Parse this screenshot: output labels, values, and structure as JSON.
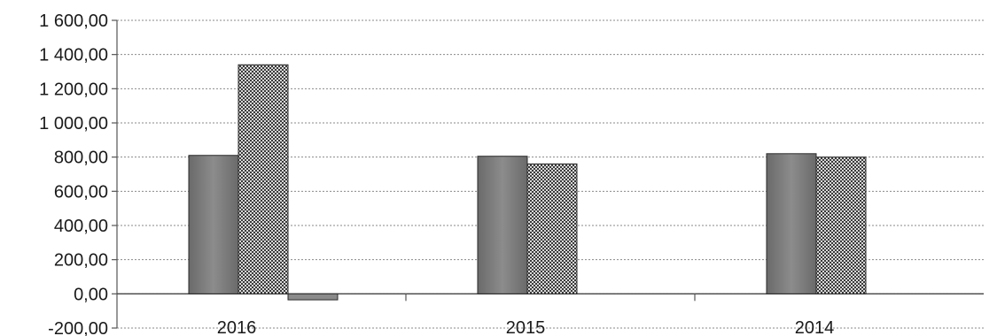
{
  "chart_data": {
    "type": "bar",
    "categories": [
      "2016",
      "2015",
      "2014"
    ],
    "series": [
      {
        "values": [
          810,
          805,
          820
        ],
        "color": "#7a7a7a",
        "pattern": "solid"
      },
      {
        "values": [
          1340,
          760,
          800
        ],
        "color": "#9a9a9a",
        "pattern": "checker"
      },
      {
        "values": [
          -35,
          0,
          0
        ],
        "color": "#8a8a8a",
        "pattern": "solid"
      }
    ],
    "yticks": [
      "1 600,00",
      "1 400,00",
      "1 200,00",
      "1 000,00",
      "800,00",
      "600,00",
      "400,00",
      "200,00",
      "0,00",
      "-200,00"
    ],
    "ylim": [
      -200,
      1600
    ],
    "grid": true,
    "title": "",
    "xlabel": "",
    "ylabel": ""
  }
}
